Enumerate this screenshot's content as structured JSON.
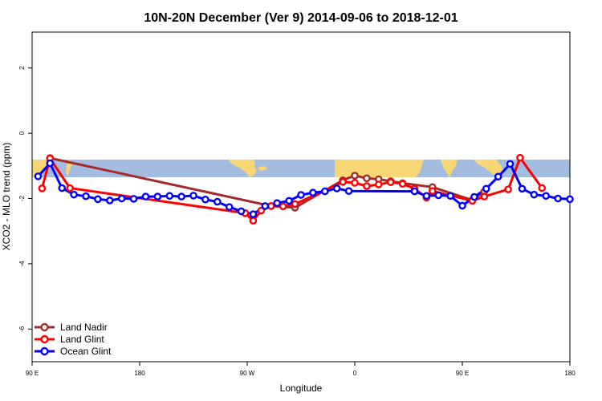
{
  "chart_data": {
    "type": "line",
    "title": "10N-20N December (Ver 9)   2014-09-06 to 2018-12-01",
    "xlabel": "Longitude",
    "ylabel": "XCO2 - MLO trend (ppm)",
    "xlim": [
      -90,
      180
    ],
    "ylim": [
      -7,
      3.1
    ],
    "x_ticks": [
      {
        "value": -90,
        "label": "90 E"
      },
      {
        "value": -36,
        "label": "180"
      },
      {
        "value": 18,
        "label": "90 W"
      },
      {
        "value": 72,
        "label": "0"
      },
      {
        "value": 126,
        "label": "90 E"
      },
      {
        "value": 180,
        "label": "180"
      }
    ],
    "y_ticks": [
      {
        "value": -6,
        "label": "-6"
      },
      {
        "value": -4,
        "label": "-4"
      },
      {
        "value": -2,
        "label": "-2"
      },
      {
        "value": 0,
        "label": "0"
      },
      {
        "value": 2,
        "label": "2"
      }
    ],
    "map_band": {
      "ymin": -1.33,
      "ymax": -0.8,
      "ocean_color": "#a4bcdf",
      "land_color": "#f7d774"
    },
    "legend_position": "bottom-left",
    "series": [
      {
        "name": "Land Nadir",
        "color": "#a52a2a",
        "x": [
          -81,
          30,
          42,
          66,
          72,
          78,
          84,
          90,
          96,
          111,
          131,
          137
        ],
        "y": [
          -0.76,
          -2.23,
          -2.28,
          -1.44,
          -1.3,
          -1.38,
          -1.41,
          -1.47,
          -1.53,
          -1.65,
          -2.05,
          -1.79
        ]
      },
      {
        "name": "Land Glint",
        "color": "#ff0000",
        "x": [
          -85,
          -81,
          -71,
          17,
          21,
          25,
          30,
          36,
          42,
          66,
          72,
          78,
          84,
          90,
          96,
          102,
          108,
          111,
          131,
          137,
          149,
          155,
          166
        ],
        "y": [
          -1.69,
          -0.77,
          -1.68,
          -2.45,
          -2.68,
          -2.37,
          -2.23,
          -2.24,
          -2.17,
          -1.49,
          -1.52,
          -1.62,
          -1.57,
          -1.5,
          -1.55,
          -1.7,
          -1.97,
          -1.77,
          -2.07,
          -1.94,
          -1.72,
          -0.75,
          -1.68
        ]
      },
      {
        "name": "Ocean Glint",
        "color": "#0000ff",
        "x": [
          -87,
          -81,
          -75,
          -69,
          -63,
          -57,
          -51,
          -45,
          -39,
          -33,
          -27,
          -21,
          -15,
          -9,
          -3,
          3,
          9,
          15,
          21,
          27,
          33,
          39,
          45,
          51,
          57,
          63,
          69,
          102,
          108,
          114,
          120,
          126,
          132,
          138,
          144,
          150,
          156,
          162,
          168,
          174,
          180
        ],
        "y": [
          -1.32,
          -0.92,
          -1.68,
          -1.88,
          -1.93,
          -2.02,
          -2.06,
          -2.0,
          -2.01,
          -1.94,
          -1.94,
          -1.92,
          -1.94,
          -1.91,
          -2.03,
          -2.1,
          -2.26,
          -2.39,
          -2.48,
          -2.23,
          -2.14,
          -2.07,
          -1.89,
          -1.82,
          -1.78,
          -1.69,
          -1.77,
          -1.78,
          -1.92,
          -1.9,
          -1.92,
          -2.22,
          -1.95,
          -1.7,
          -1.33,
          -0.94,
          -1.7,
          -1.88,
          -1.92,
          -2.0,
          -2.02
        ]
      }
    ]
  }
}
